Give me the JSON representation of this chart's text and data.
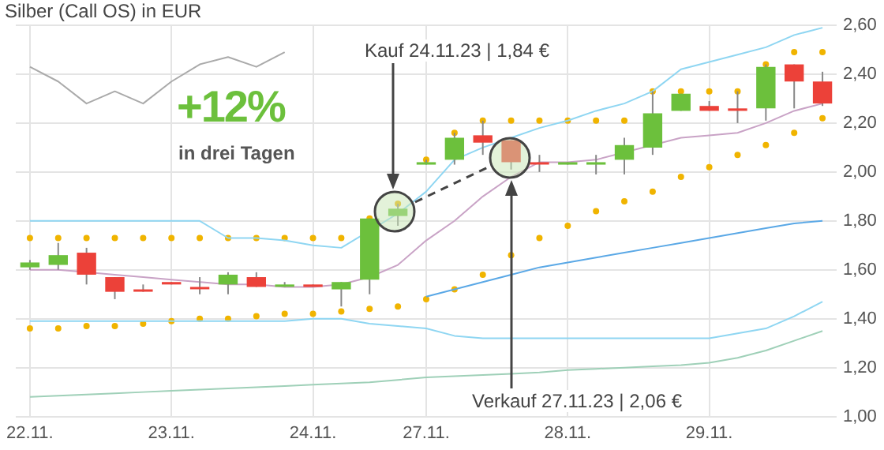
{
  "chart_data": {
    "type": "candlestick",
    "title": "Silber (Call OS) in EUR",
    "categories": [
      "22.11.",
      null,
      null,
      null,
      null,
      "23.11.",
      null,
      null,
      null,
      null,
      "24.11.",
      null,
      null,
      null,
      "27.11.",
      null,
      null,
      null,
      null,
      "28.11.",
      null,
      null,
      null,
      null,
      "29.11.",
      null,
      null,
      null,
      null
    ],
    "ohlc": [
      [
        1.61,
        1.64,
        1.6,
        1.63
      ],
      [
        1.62,
        1.71,
        1.6,
        1.66
      ],
      [
        1.67,
        1.69,
        1.54,
        1.58
      ],
      [
        1.57,
        1.57,
        1.48,
        1.51
      ],
      [
        1.52,
        1.54,
        1.51,
        1.52
      ],
      [
        1.55,
        1.55,
        1.54,
        1.54
      ],
      [
        1.53,
        1.57,
        1.5,
        1.53
      ],
      [
        1.54,
        1.59,
        1.5,
        1.58
      ],
      [
        1.57,
        1.59,
        1.53,
        1.53
      ],
      [
        1.54,
        1.55,
        1.53,
        1.54
      ],
      [
        1.54,
        1.54,
        1.53,
        1.53
      ],
      [
        1.52,
        1.55,
        1.45,
        1.55
      ],
      [
        1.56,
        1.81,
        1.5,
        1.81
      ],
      [
        1.82,
        1.87,
        1.78,
        1.85
      ],
      [
        2.03,
        2.05,
        2.03,
        2.04
      ],
      [
        2.05,
        2.16,
        2.03,
        2.14
      ],
      [
        2.15,
        2.21,
        2.07,
        2.12
      ],
      [
        2.13,
        2.13,
        2.01,
        2.04
      ],
      [
        2.04,
        2.07,
        2.0,
        2.04
      ],
      [
        2.03,
        2.04,
        2.03,
        2.04
      ],
      [
        2.03,
        2.07,
        1.99,
        2.04
      ],
      [
        2.05,
        2.14,
        1.99,
        2.11
      ],
      [
        2.1,
        2.33,
        2.07,
        2.24
      ],
      [
        2.25,
        2.32,
        2.25,
        2.32
      ],
      [
        2.27,
        2.29,
        2.25,
        2.25
      ],
      [
        2.26,
        2.33,
        2.2,
        2.25
      ],
      [
        2.26,
        2.44,
        2.21,
        2.43
      ],
      [
        2.44,
        2.44,
        2.26,
        2.37
      ],
      [
        2.37,
        2.41,
        2.27,
        2.28
      ]
    ],
    "series": [
      {
        "type": "line",
        "color": "#aaaaaa",
        "values": [
          2.43,
          2.37,
          2.28,
          2.33,
          2.28,
          2.37,
          2.44,
          2.47,
          2.43,
          2.49,
          null,
          null,
          null,
          null,
          null,
          null,
          null,
          null,
          null,
          null,
          null,
          null,
          null,
          null,
          null,
          null,
          null,
          null,
          null
        ]
      },
      {
        "type": "line",
        "color": "#8fd6f2",
        "values": [
          1.8,
          1.8,
          1.8,
          1.8,
          1.8,
          1.8,
          1.8,
          1.73,
          1.73,
          1.72,
          1.7,
          1.69,
          null,
          1.83,
          1.92,
          2.05,
          2.1,
          2.14,
          2.18,
          2.21,
          2.25,
          2.28,
          2.33,
          2.42,
          2.45,
          2.48,
          2.51,
          2.56,
          2.59
        ]
      },
      {
        "type": "line",
        "color": "#8fd6f2",
        "values": [
          1.39,
          1.39,
          1.39,
          1.39,
          1.39,
          1.39,
          1.39,
          1.39,
          1.39,
          1.39,
          1.4,
          1.4,
          1.38,
          1.37,
          1.36,
          1.33,
          1.32,
          1.32,
          1.32,
          1.32,
          1.32,
          1.32,
          1.32,
          1.32,
          1.32,
          1.34,
          1.36,
          1.41,
          1.47
        ]
      },
      {
        "type": "line",
        "color": "#c9a3c6",
        "values": [
          1.6,
          1.6,
          1.59,
          1.58,
          1.57,
          1.56,
          1.55,
          1.54,
          1.54,
          1.53,
          1.53,
          1.54,
          1.57,
          1.62,
          1.72,
          1.8,
          1.9,
          1.98,
          2.04,
          2.04,
          2.05,
          null,
          null,
          2.14,
          2.15,
          2.16,
          2.2,
          2.25,
          2.28
        ]
      },
      {
        "type": "line",
        "color": "#5aa8e6",
        "values": [
          null,
          null,
          null,
          null,
          null,
          null,
          null,
          null,
          null,
          null,
          null,
          null,
          null,
          null,
          1.49,
          1.52,
          1.55,
          1.58,
          1.61,
          1.63,
          1.65,
          1.67,
          1.69,
          1.71,
          1.73,
          1.75,
          1.77,
          1.79,
          1.8
        ]
      },
      {
        "type": "line",
        "color": "#9fd0b8",
        "values": [
          1.08,
          1.085,
          1.09,
          1.095,
          1.1,
          1.105,
          1.11,
          1.115,
          1.12,
          1.125,
          1.13,
          1.135,
          1.14,
          1.15,
          1.16,
          1.165,
          1.17,
          1.175,
          1.18,
          1.19,
          1.195,
          1.2,
          1.205,
          1.21,
          1.22,
          1.24,
          1.27,
          1.31,
          1.35
        ]
      },
      {
        "type": "scatter",
        "marker": "circle",
        "color": "#f0b400",
        "values": [
          1.73,
          1.73,
          1.73,
          1.73,
          1.73,
          1.73,
          1.73,
          1.73,
          1.73,
          1.73,
          1.73,
          1.73,
          1.81,
          1.87,
          2.05,
          2.16,
          2.21,
          2.21,
          2.21,
          2.21,
          2.21,
          2.21,
          2.33,
          2.33,
          2.33,
          2.33,
          2.44,
          2.49,
          2.49
        ]
      },
      {
        "type": "scatter",
        "marker": "circle",
        "color": "#f0b400",
        "values": [
          1.36,
          1.36,
          1.37,
          1.37,
          1.38,
          1.39,
          1.4,
          1.4,
          1.41,
          1.42,
          1.42,
          1.43,
          1.44,
          1.45,
          1.48,
          1.52,
          1.58,
          1.66,
          1.73,
          1.78,
          1.84,
          1.88,
          1.92,
          1.98,
          2.02,
          2.07,
          2.11,
          2.16,
          2.22
        ]
      }
    ],
    "colors": [
      "#6cc03c",
      "#6cc03c",
      "#ec4139",
      "#ec4139",
      "#ec4139",
      "#ec4139",
      "#ec4139",
      "#6cc03c",
      "#ec4139",
      "#6cc03c",
      "#ec4139",
      "#6cc03c",
      "#6cc03c",
      "#6cc03c",
      "#6cc03c",
      "#6cc03c",
      "#ec4139",
      "#ec4139",
      "#ec4139",
      "#6cc03c",
      "#6cc03c",
      "#6cc03c",
      "#6cc03c",
      "#6cc03c",
      "#ec4139",
      "#ec4139",
      "#6cc03c",
      "#ec4139",
      "#ec4139"
    ],
    "ylim": [
      1.0,
      2.6
    ],
    "yticks": [
      {
        "value": 1.0,
        "label": "1,00"
      },
      {
        "value": 1.2,
        "label": "1,20"
      },
      {
        "value": 1.4,
        "label": "1,40"
      },
      {
        "value": 1.6,
        "label": "1,60"
      },
      {
        "value": 1.8,
        "label": "1,80"
      },
      {
        "value": 2.0,
        "label": "2,00"
      },
      {
        "value": 2.2,
        "label": "2,20"
      },
      {
        "value": 2.4,
        "label": "2,40"
      },
      {
        "value": 2.6,
        "label": "2,60"
      }
    ],
    "grid": true,
    "legend": false,
    "marker": "none",
    "annotations": [
      "+12%",
      "in drei Tagen",
      "Kauf 24.11.23 | 1,84 €",
      "Verkauf 27.11.23 | 2,06 €"
    ]
  }
}
